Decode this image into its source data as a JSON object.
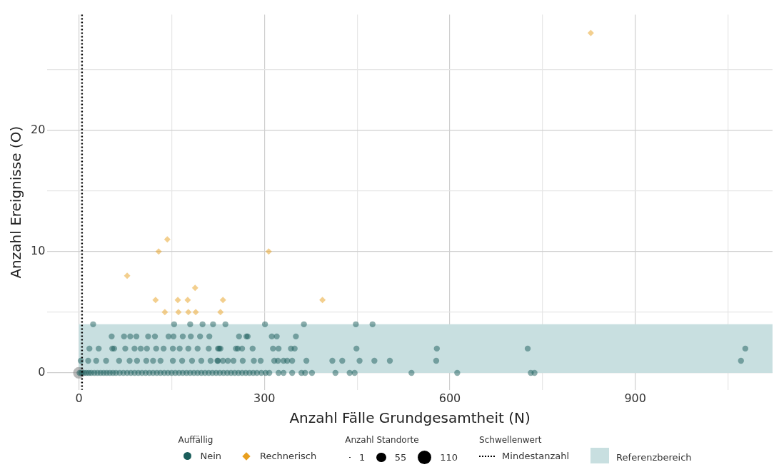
{
  "chart_data": {
    "type": "bubble",
    "xlabel": "Anzahl Fälle Grundgesamtheit (N)",
    "ylabel": "Anzahl Ereignisse (O)",
    "legend_title": "Auffällig",
    "legend": "bottom",
    "grid": true,
    "xlim": [
      -51,
      1122
    ],
    "xticks": [
      0,
      {
        "value": 150,
        "label": null
      },
      300,
      {
        "value": 450,
        "label": null
      },
      600,
      {
        "value": 750,
        "label": null
      },
      900,
      {
        "value": 1050,
        "label": null
      }
    ],
    "ylim": [
      -1.4,
      29.5
    ],
    "yticks": [
      0,
      {
        "value": 5,
        "label": null
      },
      10,
      {
        "value": 15,
        "label": null
      },
      20,
      {
        "value": 25,
        "label": null
      }
    ],
    "size_legend": [
      1,
      55,
      110
    ],
    "series": [
      {
        "name": "Nein",
        "type": "scatter",
        "marker": "circle",
        "color": "#1b5e5b",
        "x": [
          1,
          4,
          8,
          12,
          16,
          20,
          25,
          30,
          35,
          40,
          45,
          50,
          55,
          60,
          66,
          72,
          78,
          84,
          90,
          96,
          102,
          108,
          114,
          120,
          126,
          132,
          138,
          144,
          150,
          156,
          162,
          168,
          174,
          180,
          186,
          192,
          198,
          204,
          210,
          216,
          222,
          228,
          234,
          240,
          246,
          252,
          258,
          264,
          270,
          276,
          282,
          288,
          295,
          302,
          308,
          323,
          331,
          345,
          360,
          366,
          377,
          415,
          438,
          446,
          538,
          612,
          731,
          737,
          3,
          15,
          28,
          44,
          65,
          82,
          94,
          109,
          120,
          132,
          152,
          167,
          183,
          198,
          213,
          225,
          224,
          233,
          241,
          250,
          265,
          283,
          294,
          316,
          322,
          331,
          337,
          345,
          368,
          410,
          426,
          454,
          478,
          503,
          578,
          1071,
          17,
          32,
          54,
          57,
          75,
          90,
          100,
          110,
          125,
          137,
          152,
          163,
          177,
          192,
          210,
          227,
          225,
          229,
          254,
          257,
          264,
          281,
          314,
          323,
          343,
          349,
          449,
          579,
          726,
          1078,
          53,
          73,
          83,
          93,
          112,
          123,
          145,
          153,
          168,
          181,
          196,
          211,
          259,
          271,
          273,
          312,
          320,
          351,
          23,
          154,
          180,
          200,
          217,
          237,
          301,
          364,
          448,
          475
        ],
        "values": [
          0,
          0,
          0,
          0,
          0,
          0,
          0,
          0,
          0,
          0,
          0,
          0,
          0,
          0,
          0,
          0,
          0,
          0,
          0,
          0,
          0,
          0,
          0,
          0,
          0,
          0,
          0,
          0,
          0,
          0,
          0,
          0,
          0,
          0,
          0,
          0,
          0,
          0,
          0,
          0,
          0,
          0,
          0,
          0,
          0,
          0,
          0,
          0,
          0,
          0,
          0,
          0,
          0,
          0,
          0,
          0,
          0,
          0,
          0,
          0,
          0,
          0,
          0,
          0,
          0,
          0,
          0,
          0,
          1,
          1,
          1,
          1,
          1,
          1,
          1,
          1,
          1,
          1,
          1,
          1,
          1,
          1,
          1,
          1,
          1,
          1,
          1,
          1,
          1,
          1,
          1,
          1,
          1,
          1,
          1,
          1,
          1,
          1,
          1,
          1,
          1,
          1,
          1,
          1,
          2,
          2,
          2,
          2,
          2,
          2,
          2,
          2,
          2,
          2,
          2,
          2,
          2,
          2,
          2,
          2,
          2,
          2,
          2,
          2,
          2,
          2,
          2,
          2,
          2,
          2,
          2,
          2,
          2,
          2,
          3,
          3,
          3,
          3,
          3,
          3,
          3,
          3,
          3,
          3,
          3,
          3,
          3,
          3,
          3,
          3,
          3,
          3,
          4,
          4,
          4,
          4,
          4,
          4,
          4,
          4,
          4,
          4
        ]
      },
      {
        "name": "Rechnerisch",
        "type": "scatter",
        "marker": "diamond",
        "color": "#e89f1e",
        "x": [
          78,
          129,
          143,
          124,
          139,
          160,
          161,
          176,
          177,
          188,
          189,
          229,
          233,
          307,
          394,
          828
        ],
        "values": [
          8,
          10,
          11,
          6,
          5,
          6,
          5,
          6,
          5,
          7,
          5,
          5,
          6,
          10,
          6,
          28
        ]
      },
      {
        "color": "#8a8a8a",
        "x": [
          0
        ],
        "values": [
          0
        ],
        "sizes": [
          80
        ]
      }
    ],
    "ref_lines": [
      {
        "axis": "x",
        "value": 5,
        "label": "Mindestanzahl",
        "color": "#000000",
        "line_style": "dotted"
      }
    ],
    "bands": [
      {
        "axis": "y",
        "from": 0,
        "to": 4,
        "label": "Referenzbereich",
        "color": "#c8dfe0"
      }
    ],
    "annotations": [
      "Anzahl Standorte",
      "Schwellenwert"
    ]
  }
}
